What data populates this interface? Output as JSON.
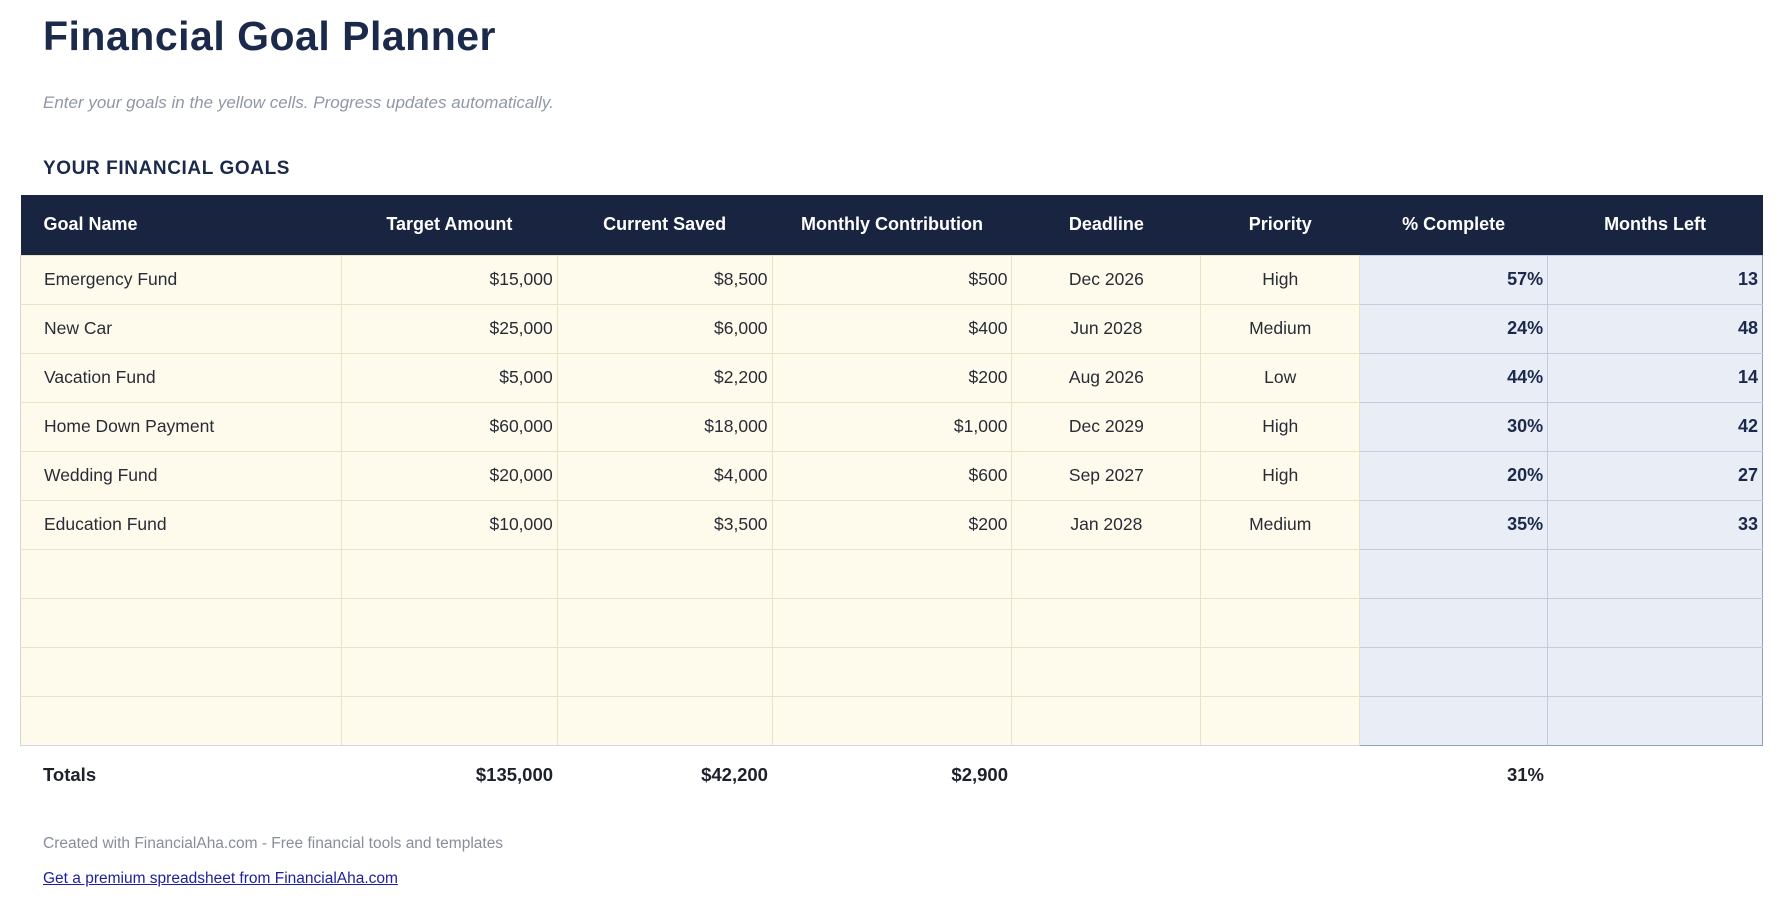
{
  "page": {
    "title": "Financial Goal Planner",
    "subtitle": "Enter your goals in the yellow cells. Progress updates automatically.",
    "section_title": "YOUR FINANCIAL GOALS"
  },
  "colors": {
    "header_bg": "#182440",
    "title_text": "#1b2a4a",
    "input_cell_bg": "#fffbec",
    "computed_cell_bg": "#e9edf6",
    "link": "#1d1f9c"
  },
  "table": {
    "headers": [
      "Goal Name",
      "Target Amount",
      "Current Saved",
      "Monthly Contribution",
      "Deadline",
      "Priority",
      "% Complete",
      "Months Left"
    ],
    "rows": [
      {
        "goal": "Emergency Fund",
        "target": "$15,000",
        "saved": "$8,500",
        "monthly": "$500",
        "deadline": "Dec 2026",
        "priority": "High",
        "complete": "57%",
        "months": "13"
      },
      {
        "goal": "New Car",
        "target": "$25,000",
        "saved": "$6,000",
        "monthly": "$400",
        "deadline": "Jun 2028",
        "priority": "Medium",
        "complete": "24%",
        "months": "48"
      },
      {
        "goal": "Vacation Fund",
        "target": "$5,000",
        "saved": "$2,200",
        "monthly": "$200",
        "deadline": "Aug 2026",
        "priority": "Low",
        "complete": "44%",
        "months": "14"
      },
      {
        "goal": "Home Down Payment",
        "target": "$60,000",
        "saved": "$18,000",
        "monthly": "$1,000",
        "deadline": "Dec 2029",
        "priority": "High",
        "complete": "30%",
        "months": "42"
      },
      {
        "goal": "Wedding Fund",
        "target": "$20,000",
        "saved": "$4,000",
        "monthly": "$600",
        "deadline": "Sep 2027",
        "priority": "High",
        "complete": "20%",
        "months": "27"
      },
      {
        "goal": "Education Fund",
        "target": "$10,000",
        "saved": "$3,500",
        "monthly": "$200",
        "deadline": "Jan 2028",
        "priority": "Medium",
        "complete": "35%",
        "months": "33"
      },
      {
        "goal": "",
        "target": "",
        "saved": "",
        "monthly": "",
        "deadline": "",
        "priority": "",
        "complete": "",
        "months": ""
      },
      {
        "goal": "",
        "target": "",
        "saved": "",
        "monthly": "",
        "deadline": "",
        "priority": "",
        "complete": "",
        "months": ""
      },
      {
        "goal": "",
        "target": "",
        "saved": "",
        "monthly": "",
        "deadline": "",
        "priority": "",
        "complete": "",
        "months": ""
      },
      {
        "goal": "",
        "target": "",
        "saved": "",
        "monthly": "",
        "deadline": "",
        "priority": "",
        "complete": "",
        "months": ""
      }
    ],
    "totals": {
      "label": "Totals",
      "target": "$135,000",
      "saved": "$42,200",
      "monthly": "$2,900",
      "deadline": "",
      "priority": "",
      "complete": "31%",
      "months": ""
    }
  },
  "footer": {
    "credit": "Created with FinancialAha.com - Free financial tools and templates",
    "link": "Get a premium spreadsheet from FinancialAha.com"
  }
}
